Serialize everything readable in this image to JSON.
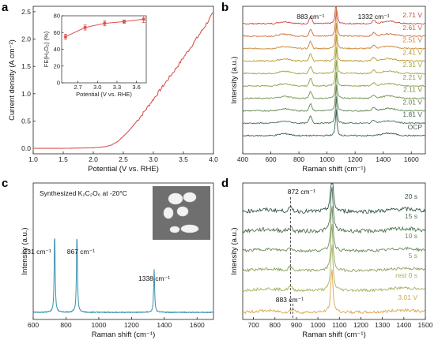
{
  "panels": {
    "a": "a",
    "b": "b",
    "c": "c",
    "d": "d"
  },
  "chart_data": [
    {
      "panel": "a",
      "type": "line",
      "xlabel": "Potential (V vs. RHE)",
      "ylabel": "Current density (A cm⁻²)",
      "xlim": [
        1.0,
        4.0
      ],
      "ylim": [
        -0.1,
        2.6
      ],
      "xticks": [
        1.0,
        1.5,
        2.0,
        2.5,
        3.0,
        3.5,
        4.0
      ],
      "yticks": [
        0.0,
        0.5,
        1.0,
        1.5,
        2.0,
        2.5
      ],
      "series": [
        {
          "color": "#d9534f",
          "x": [
            1.0,
            1.5,
            2.0,
            2.2,
            2.3,
            2.4,
            2.5,
            2.6,
            2.8,
            3.0,
            3.2,
            3.4,
            3.6,
            3.8,
            4.0
          ],
          "y": [
            0.0,
            0.0,
            0.01,
            0.03,
            0.06,
            0.12,
            0.22,
            0.33,
            0.6,
            0.9,
            1.2,
            1.5,
            1.82,
            2.14,
            2.48
          ]
        }
      ],
      "inset": {
        "type": "line",
        "xlabel": "Potential (V vs. RHE)",
        "ylabel": "FE(H₂O₂) (%)",
        "xlim": [
          2.45,
          3.75
        ],
        "ylim": [
          0,
          80
        ],
        "xticks": [
          2.7,
          3.0,
          3.3,
          3.6
        ],
        "yticks": [
          0,
          20,
          40,
          60,
          80
        ],
        "x": [
          2.51,
          2.81,
          3.11,
          3.41,
          3.71
        ],
        "y": [
          55,
          66,
          71,
          73,
          76
        ],
        "yerr": [
          3,
          3,
          3,
          2,
          4
        ],
        "color": "#d9534f"
      }
    },
    {
      "panel": "b",
      "type": "line",
      "xlabel": "Raman shift (cm⁻¹)",
      "ylabel": "Intensity (a.u.)",
      "xlim": [
        400,
        1700
      ],
      "xticks": [
        400,
        600,
        800,
        1000,
        1200,
        1400,
        1600
      ],
      "annotations": [
        "883 cm⁻¹",
        "1332 cm⁻¹"
      ],
      "series": [
        {
          "name": "2.71 V",
          "color": "#c8483f"
        },
        {
          "name": "2.61 V",
          "color": "#cf6a35"
        },
        {
          "name": "2.51 V",
          "color": "#c9852e"
        },
        {
          "name": "2.41 V",
          "color": "#b99b2d"
        },
        {
          "name": "2.31 V",
          "color": "#a4a33a"
        },
        {
          "name": "2.21 V",
          "color": "#8c9f45"
        },
        {
          "name": "2.11 V",
          "color": "#74934b"
        },
        {
          "name": "2.01 V",
          "color": "#5e8550"
        },
        {
          "name": "1.81 V",
          "color": "#4b7453"
        },
        {
          "name": "OCP",
          "color": "#3b5f4f"
        }
      ]
    },
    {
      "panel": "c",
      "type": "line",
      "title": "Synthesized K₂C₂O₆ at -20°C",
      "xlabel": "Raman shift (cm⁻¹)",
      "ylabel": "Intensity (a.u.)",
      "xlim": [
        600,
        1700
      ],
      "xticks": [
        600,
        800,
        1000,
        1200,
        1400,
        1600
      ],
      "annotations": [
        "731 cm⁻¹",
        "867 cm⁻¹",
        "1338 cm⁻¹"
      ],
      "series": [
        {
          "color": "#3a8fb0",
          "peaks": [
            731,
            867,
            1338
          ]
        }
      ]
    },
    {
      "panel": "d",
      "type": "line",
      "xlabel": "Raman shift (cm⁻¹)",
      "ylabel": "Intensity (a.u.)",
      "xlim": [
        650,
        1500
      ],
      "xticks": [
        700,
        800,
        900,
        1000,
        1100,
        1200,
        1300,
        1400,
        1500
      ],
      "annotations": [
        "872 cm⁻¹",
        "883 cm⁻¹"
      ],
      "series": [
        {
          "name": "20 s",
          "color": "#35584a"
        },
        {
          "name": "15 s",
          "color": "#4f7350"
        },
        {
          "name": "10 s",
          "color": "#6a8a55"
        },
        {
          "name": "5 s",
          "color": "#8aa25a"
        },
        {
          "name": "rest 0 s",
          "color": "#a6b15c"
        },
        {
          "name": "3.01 V",
          "color": "#dca34c"
        }
      ]
    }
  ]
}
